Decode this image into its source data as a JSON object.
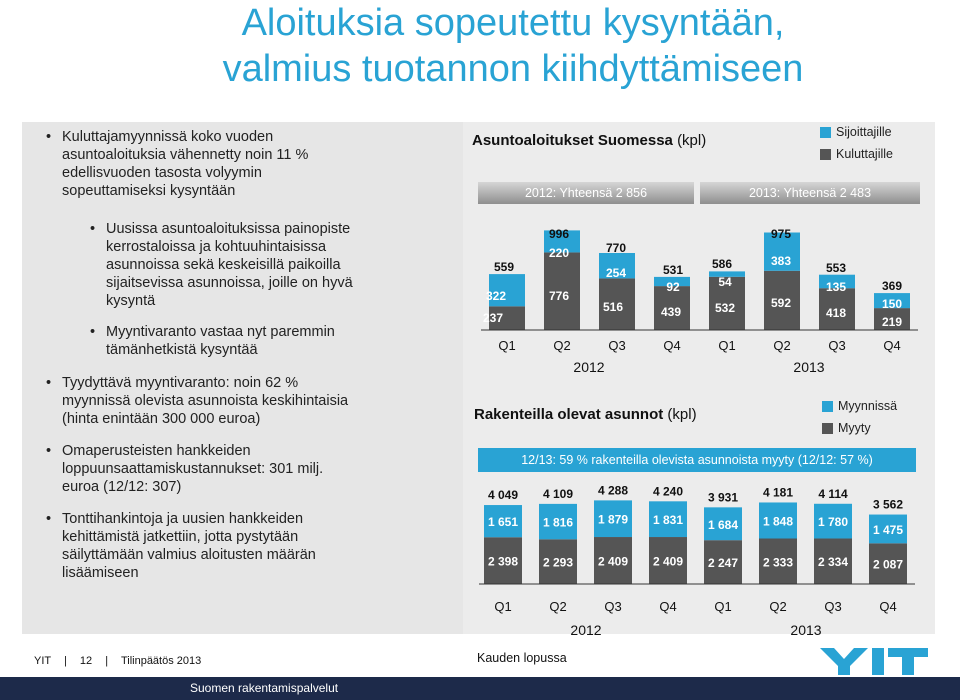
{
  "title": {
    "line1": "Aloituksia sopeutettu kysyntään,",
    "line2": "valmius tuotannon kiihdyttämiseen"
  },
  "bullets": [
    {
      "text_lines": [
        "Kuluttajamyynnissä koko vuoden",
        "asuntoaloituksia vähennetty noin 11 %",
        "edellisvuoden tasosta volyymin",
        "sopeuttamiseksi kysyntään"
      ],
      "level": 1
    },
    {
      "text_lines": [
        "Uusissa asuntoaloituksissa painopiste",
        "kerrostaloissa ja kohtuuhintaisissa",
        "asunnoissa sekä keskeisillä paikoilla",
        "sijaitsevissa asunnoissa, joille on hyvä",
        "kysyntä"
      ],
      "level": 2
    },
    {
      "text_lines": [
        "Myyntivaranto vastaa nyt paremmin",
        "tämänhetkistä kysyntää"
      ],
      "level": 2
    },
    {
      "text_lines": [
        "Tyydyttävä myyntivaranto: noin 62 %",
        "myynnissä olevista asunnoista keskihintaisia",
        "(hinta enintään 300 000 euroa)"
      ],
      "level": 1
    },
    {
      "text_lines": [
        "Omaperusteisten hankkeiden",
        "loppuunsaattamiskustannukset: 301 milj.",
        "euroa (12/12: 307)"
      ],
      "level": 1
    },
    {
      "text_lines": [
        "Tonttihankintoja ja uusien hankkeiden",
        "kehittämistä jatkettiin, jotta pystytään",
        "säilyttämään valmius aloitusten määrän",
        "lisäämiseen"
      ],
      "level": 1
    }
  ],
  "chart1": {
    "title_bold": "Asuntoaloitukset Suomessa",
    "title_unit": "(kpl)",
    "legend": [
      "Sijoittajille",
      "Kuluttajille"
    ],
    "totals": [
      "2012: Yhteensä 2 856",
      "2013: Yhteensä 2 483"
    ],
    "quarters": [
      "Q1",
      "Q2",
      "Q3",
      "Q4",
      "Q1",
      "Q2",
      "Q3",
      "Q4"
    ],
    "years": [
      "2012",
      "2013"
    ]
  },
  "chart2": {
    "title_bold": "Rakenteilla olevat asunnot",
    "title_unit": "(kpl)",
    "legend": [
      "Myynnissä",
      "Myyty"
    ],
    "banner": "12/13: 59 % rakenteilla olevista asunnoista myyty (12/12: 57 %)",
    "quarters": [
      "Q1",
      "Q2",
      "Q3",
      "Q4",
      "Q1",
      "Q2",
      "Q3",
      "Q4"
    ],
    "years": [
      "2012",
      "2013"
    ],
    "note": "Kauden lopussa"
  },
  "chart_data": [
    {
      "type": "bar",
      "stacked": true,
      "title": "Asuntoaloitukset Suomessa (kpl)",
      "categories": [
        "Q1 2012",
        "Q2 2012",
        "Q3 2012",
        "Q4 2012",
        "Q1 2013",
        "Q2 2013",
        "Q3 2013",
        "Q4 2013"
      ],
      "series": [
        {
          "name": "Kuluttajille",
          "values": [
            237,
            776,
            516,
            439,
            532,
            592,
            418,
            219
          ],
          "color": "#555555"
        },
        {
          "name": "Sijoittajille",
          "values": [
            322,
            220,
            254,
            92,
            54,
            383,
            135,
            150
          ],
          "color": "#29a3d4"
        }
      ],
      "totals": [
        559,
        996,
        770,
        531,
        586,
        975,
        553,
        369
      ]
    },
    {
      "type": "bar",
      "stacked": true,
      "title": "Rakenteilla olevat asunnot (kpl)",
      "categories": [
        "Q1 2012",
        "Q2 2012",
        "Q3 2012",
        "Q4 2012",
        "Q1 2013",
        "Q2 2013",
        "Q3 2013",
        "Q4 2013"
      ],
      "series": [
        {
          "name": "Myyty",
          "values": [
            2398,
            2293,
            2409,
            2409,
            2247,
            2333,
            2334,
            2087
          ],
          "labels": [
            "2 398",
            "2 293",
            "2 409",
            "2 409",
            "2 247",
            "2 333",
            "2 334",
            "2 087"
          ],
          "color": "#555555"
        },
        {
          "name": "Myynnissä",
          "values": [
            1651,
            1816,
            1879,
            1831,
            1684,
            1848,
            1780,
            1475
          ],
          "labels": [
            "1 651",
            "1 816",
            "1 879",
            "1 831",
            "1 684",
            "1 848",
            "1 780",
            "1 475"
          ],
          "color": "#29a3d4"
        }
      ],
      "totals": [
        "4 049",
        "4 109",
        "4 288",
        "4 240",
        "3 931",
        "4 181",
        "4 114",
        "3 562"
      ]
    }
  ],
  "footer": {
    "brand": "YIT",
    "page": "12",
    "doc": "Tilinpäätös 2013",
    "bottom_label": "Suomen rakentamispalvelut"
  },
  "colors": {
    "accent": "#29a3d4",
    "dark": "#555555",
    "navy": "#1d2a4a"
  }
}
